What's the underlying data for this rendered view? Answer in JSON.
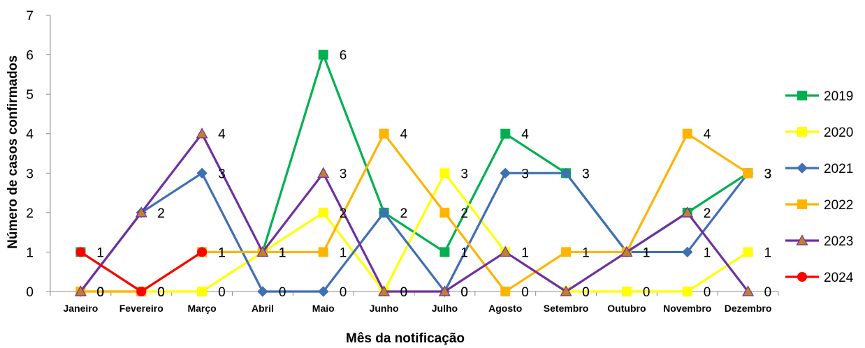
{
  "chart_data": {
    "type": "line",
    "title": "",
    "xlabel": "Mês da notificação",
    "ylabel": "Número de casos confirmados",
    "ylim": [
      0,
      7
    ],
    "yticks": [
      "0",
      "1",
      "2",
      "3",
      "4",
      "5",
      "6",
      "7"
    ],
    "grid": false,
    "legend_position": "right",
    "categories": [
      "Janeiro",
      "Fevereiro",
      "Março",
      "Abril",
      "Maio",
      "Junho",
      "Julho",
      "Agosto",
      "Setembro",
      "Outubro",
      "Novembro",
      "Dezembro"
    ],
    "series": [
      {
        "name": "2019",
        "color": "#00B050",
        "marker": "square",
        "values": [
          1,
          0,
          1,
          1,
          6,
          2,
          1,
          4,
          3,
          1,
          2,
          3
        ],
        "labels": [
          "1",
          "0",
          "1",
          "1",
          "6",
          "2",
          "1",
          "4",
          "3",
          "1",
          "2",
          "3"
        ]
      },
      {
        "name": "2020",
        "color": "#FFFF00",
        "marker": "square",
        "values": [
          0,
          0,
          0,
          1,
          2,
          0,
          3,
          1,
          0,
          0,
          0,
          1
        ],
        "labels": [
          "0",
          "0",
          "0",
          "1",
          "2",
          "0",
          "3",
          "1",
          "0",
          "0",
          "0",
          "1"
        ]
      },
      {
        "name": "2021",
        "color": "#3F6FB5",
        "marker": "diamond",
        "values": [
          0,
          2,
          3,
          0,
          0,
          2,
          0,
          3,
          3,
          1,
          1,
          3
        ],
        "labels": [
          "0",
          "2",
          "3",
          "0",
          "0",
          "2",
          "0",
          "3",
          "3",
          "1",
          "1",
          "3"
        ]
      },
      {
        "name": "2022",
        "color": "#FFB400",
        "marker": "square",
        "values": [
          0,
          0,
          1,
          1,
          1,
          4,
          2,
          0,
          1,
          1,
          4,
          3
        ],
        "labels": [
          "0",
          "0",
          "1",
          "1",
          "1",
          "4",
          "2",
          "0",
          "1",
          "1",
          "4",
          "3"
        ]
      },
      {
        "name": "2023",
        "color": "#7030A0",
        "marker": "triangle",
        "values": [
          0,
          2,
          4,
          1,
          3,
          0,
          0,
          1,
          0,
          1,
          2,
          0
        ],
        "labels": [
          "0",
          "2",
          "4",
          "1",
          "3",
          "0",
          "0",
          "1",
          "0",
          "1",
          "2",
          "0"
        ]
      },
      {
        "name": "2024",
        "color": "#FF0000",
        "marker": "circle",
        "values": [
          1,
          0,
          1,
          null,
          null,
          null,
          null,
          null,
          null,
          null,
          null,
          null
        ],
        "labels": [
          "1",
          "0",
          "1",
          "",
          "",
          "",
          "",
          "",
          "",
          "",
          "",
          ""
        ]
      }
    ]
  }
}
